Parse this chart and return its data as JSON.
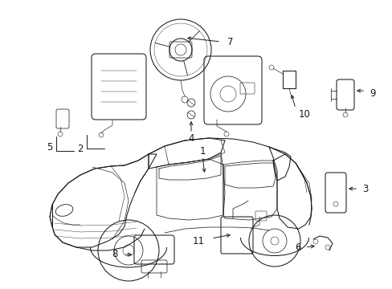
{
  "background_color": "#ffffff",
  "line_color": "#1a1a1a",
  "figure_width": 4.89,
  "figure_height": 3.6,
  "dpi": 100,
  "label_fontsize": 8.5,
  "lw": 0.75
}
